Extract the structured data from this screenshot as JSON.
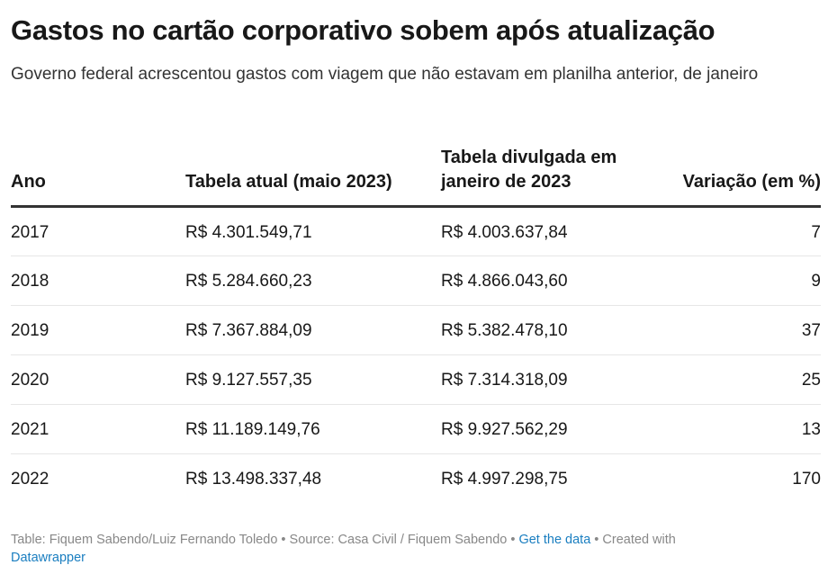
{
  "chart_data": {
    "type": "table",
    "title": "Gastos no cartão corporativo sobem após atualização",
    "subtitle": "Governo federal acrescentou gastos com viagem que não estavam em planilha anterior, de janeiro",
    "columns": [
      "Ano",
      "Tabela atual (maio 2023)",
      "Tabela divulgada em janeiro de 2023",
      "Variação (em %)"
    ],
    "rows": [
      {
        "ano": "2017",
        "atual": "R$ 4.301.549,71",
        "janeiro": "R$ 4.003.637,84",
        "variacao": "7"
      },
      {
        "ano": "2018",
        "atual": "R$ 5.284.660,23",
        "janeiro": "R$ 4.866.043,60",
        "variacao": "9"
      },
      {
        "ano": "2019",
        "atual": "R$ 7.367.884,09",
        "janeiro": "R$ 5.382.478,10",
        "variacao": "37"
      },
      {
        "ano": "2020",
        "atual": "R$ 9.127.557,35",
        "janeiro": "R$ 7.314.318,09",
        "variacao": "25"
      },
      {
        "ano": "2021",
        "atual": "R$ 11.189.149,76",
        "janeiro": "R$ 9.927.562,29",
        "variacao": "13"
      },
      {
        "ano": "2022",
        "atual": "R$ 13.498.337,48",
        "janeiro": "R$ 4.997.298,75",
        "variacao": "170"
      }
    ]
  },
  "footer": {
    "table_credit": "Table: Fiquem Sabendo/Luiz Fernando Toledo",
    "separator": " • ",
    "source": "Source: Casa Civil / Fiquem Sabendo",
    "get_data": "Get the data",
    "created_with": "Created with",
    "datawrapper": "Datawrapper"
  },
  "colors": {
    "text": "#181818",
    "footer_text": "#888888",
    "link": "#1a7ec0",
    "header_rule": "#333333",
    "row_rule": "#e6e6e6"
  }
}
